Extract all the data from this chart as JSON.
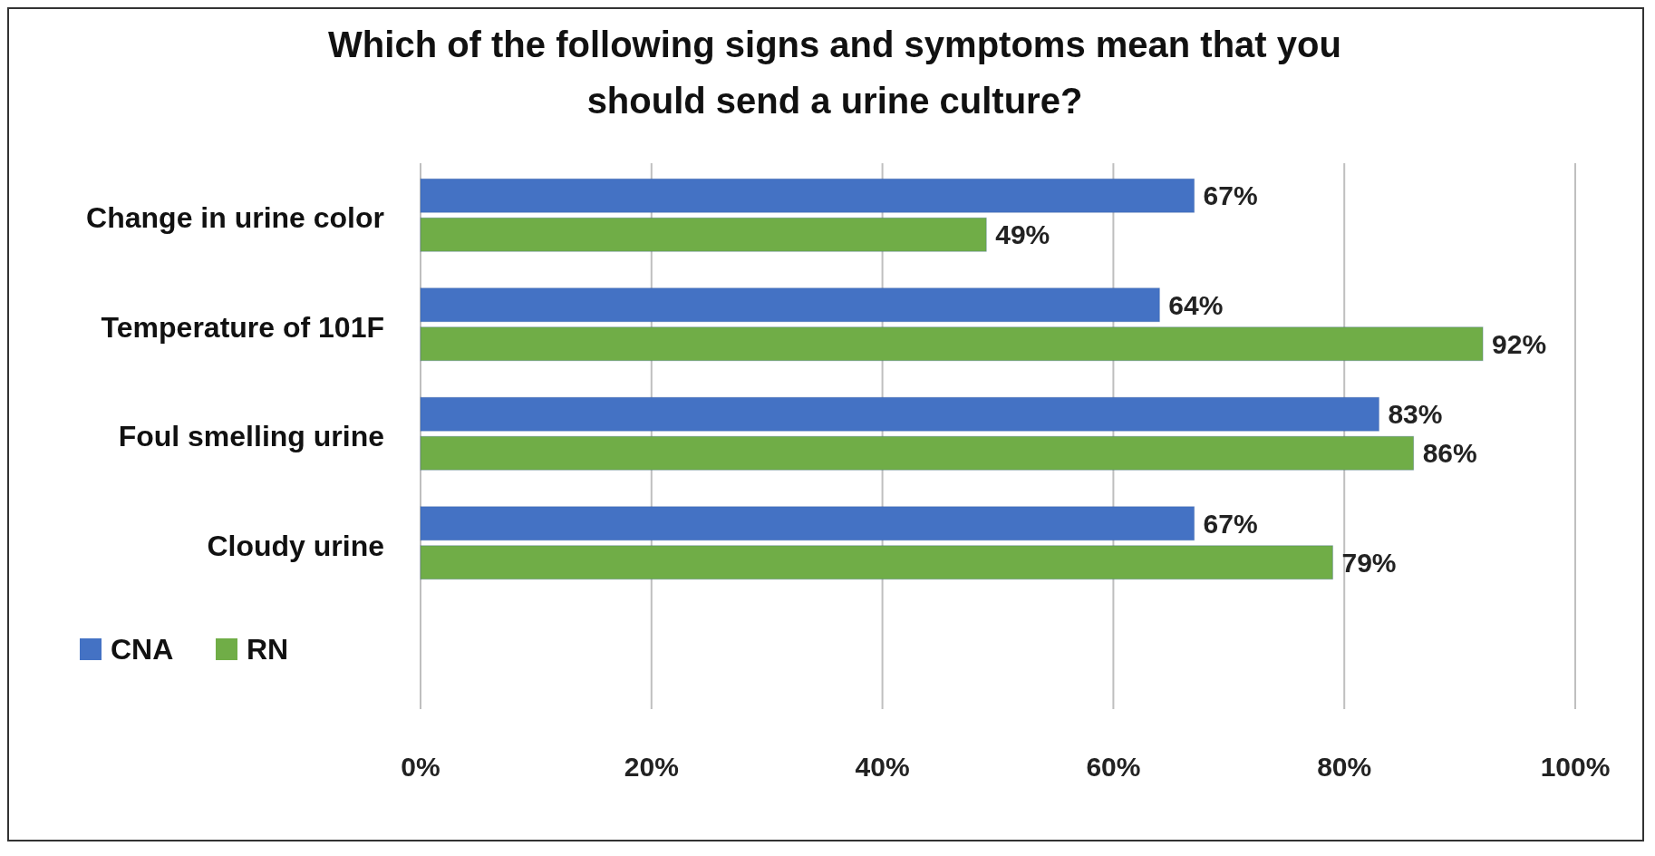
{
  "chart_data": {
    "type": "bar",
    "orientation": "horizontal",
    "title": "Which of the following signs and symptoms mean that you should send a urine culture?",
    "categories": [
      "Change in urine color",
      "Temperature of 101F",
      "Foul smelling urine",
      "Cloudy urine"
    ],
    "series": [
      {
        "name": "CNA",
        "color": "#4472c4",
        "values": [
          67,
          64,
          83,
          67
        ],
        "value_labels": [
          "67%",
          "64%",
          "83%",
          "67%"
        ]
      },
      {
        "name": "RN",
        "color": "#70ad47",
        "values": [
          49,
          92,
          86,
          79
        ],
        "value_labels": [
          "49%",
          "92%",
          "86%",
          "79%"
        ]
      }
    ],
    "xlim": [
      0,
      100
    ],
    "xticks": [
      {
        "value": 0,
        "label": "0%"
      },
      {
        "value": 20,
        "label": "20%"
      },
      {
        "value": 40,
        "label": "40%"
      },
      {
        "value": 60,
        "label": "60%"
      },
      {
        "value": 80,
        "label": "80%"
      },
      {
        "value": 100,
        "label": "100%"
      }
    ],
    "grid": "x",
    "legend": "bottom left"
  }
}
